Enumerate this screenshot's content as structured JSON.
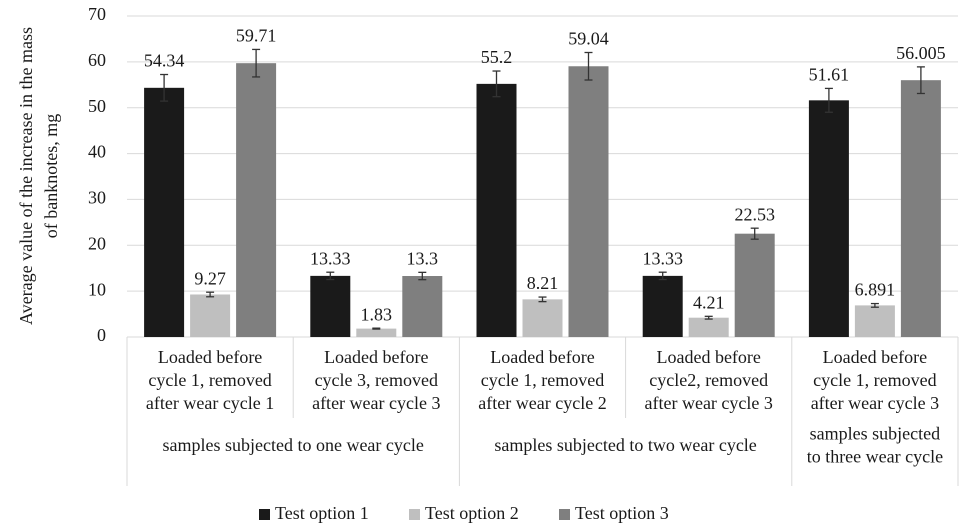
{
  "chart_data": {
    "type": "bar",
    "ylabel": [
      "Average value of the increase in the mass",
      "of banknotes, mg"
    ],
    "categories": [
      [
        "Loaded before",
        "cycle 1, removed",
        "after wear cycle 1"
      ],
      [
        "Loaded before",
        "cycle 3, removed",
        "after wear cycle 3"
      ],
      [
        "Loaded before",
        "cycle 1, removed",
        "after wear cycle 2"
      ],
      [
        "Loaded before",
        "cycle2, removed",
        "after wear cycle 3"
      ],
      [
        "Loaded before",
        "cycle 1, removed",
        "after wear cycle 3"
      ]
    ],
    "groups": [
      {
        "label": [
          "samples subjected to one wear cycle"
        ],
        "span": 2
      },
      {
        "label": [
          "samples subjected to two wear cycle"
        ],
        "span": 2
      },
      {
        "label": [
          "samples subjected",
          "to three wear cycle"
        ],
        "span": 1
      }
    ],
    "series": [
      {
        "name": "Test option 1",
        "color": "#1a1a1a",
        "values": [
          54.34,
          13.33,
          55.2,
          13.33,
          51.61
        ],
        "errors": [
          2.9,
          0.8,
          2.8,
          0.8,
          2.6
        ]
      },
      {
        "name": "Test option 2",
        "color": "#bfbfbf",
        "values": [
          9.27,
          1.83,
          8.21,
          4.21,
          6.891
        ],
        "errors": [
          0.5,
          0.1,
          0.5,
          0.3,
          0.4
        ]
      },
      {
        "name": "Test option 3",
        "color": "#7f7f7f",
        "values": [
          59.71,
          13.3,
          59.04,
          22.53,
          56.005
        ],
        "errors": [
          3.0,
          0.8,
          3.0,
          1.2,
          2.9
        ]
      }
    ],
    "ylim": [
      0,
      70
    ],
    "yticks": [
      0,
      10,
      20,
      30,
      40,
      50,
      60,
      70
    ],
    "grid": true,
    "legend": "bottom"
  }
}
